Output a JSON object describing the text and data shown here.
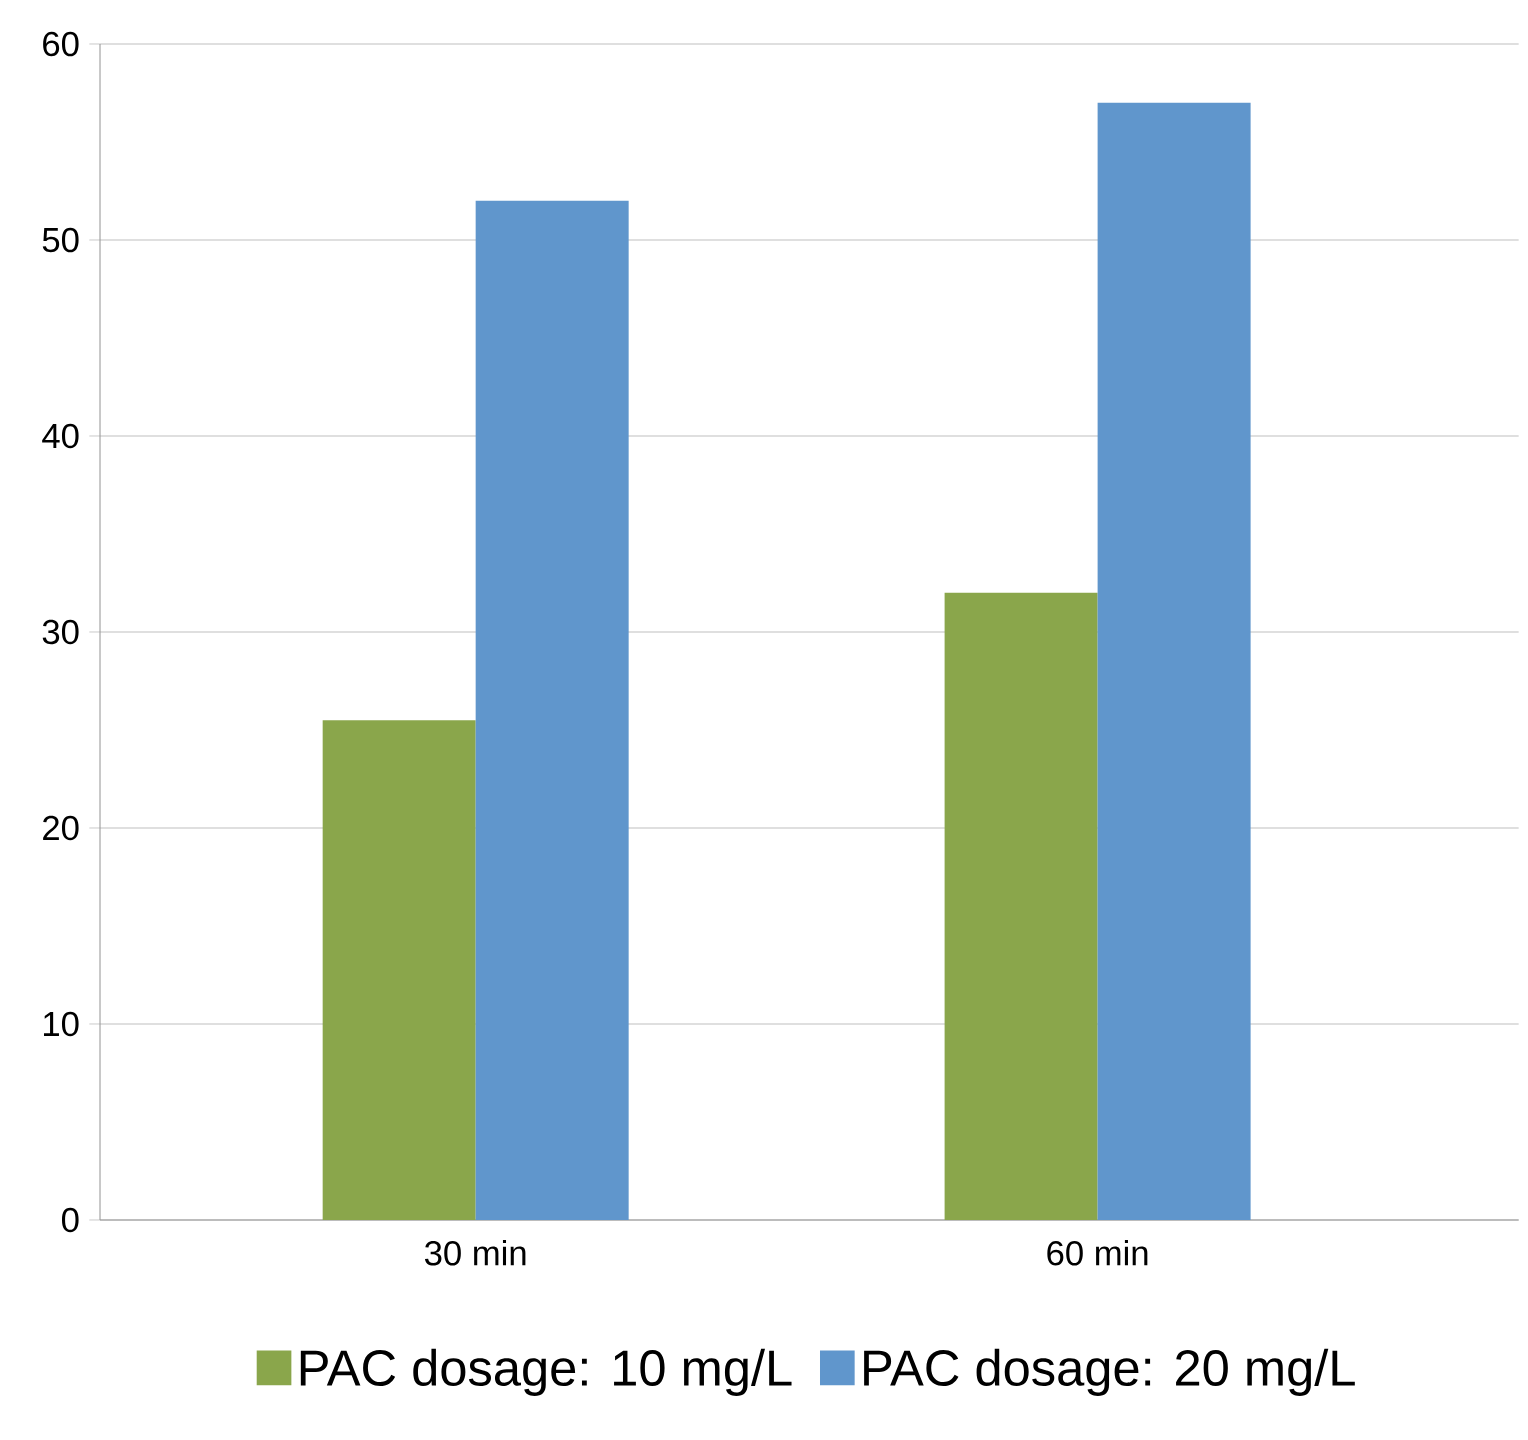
{
  "chart_data": {
    "type": "bar",
    "categories": [
      "30 min",
      "60 min"
    ],
    "series": [
      {
        "name": "PAC dosage: 10 mg/L",
        "color": "#8aa64b",
        "values": [
          25.5,
          32
        ]
      },
      {
        "name": "PAC dosage: 20 mg/L",
        "color": "#6096cc",
        "values": [
          52,
          57
        ]
      }
    ],
    "ylim": [
      0,
      60
    ],
    "yticks": [
      0,
      10,
      20,
      30,
      40,
      50,
      60
    ],
    "grid": "y",
    "legend": "bottom"
  }
}
